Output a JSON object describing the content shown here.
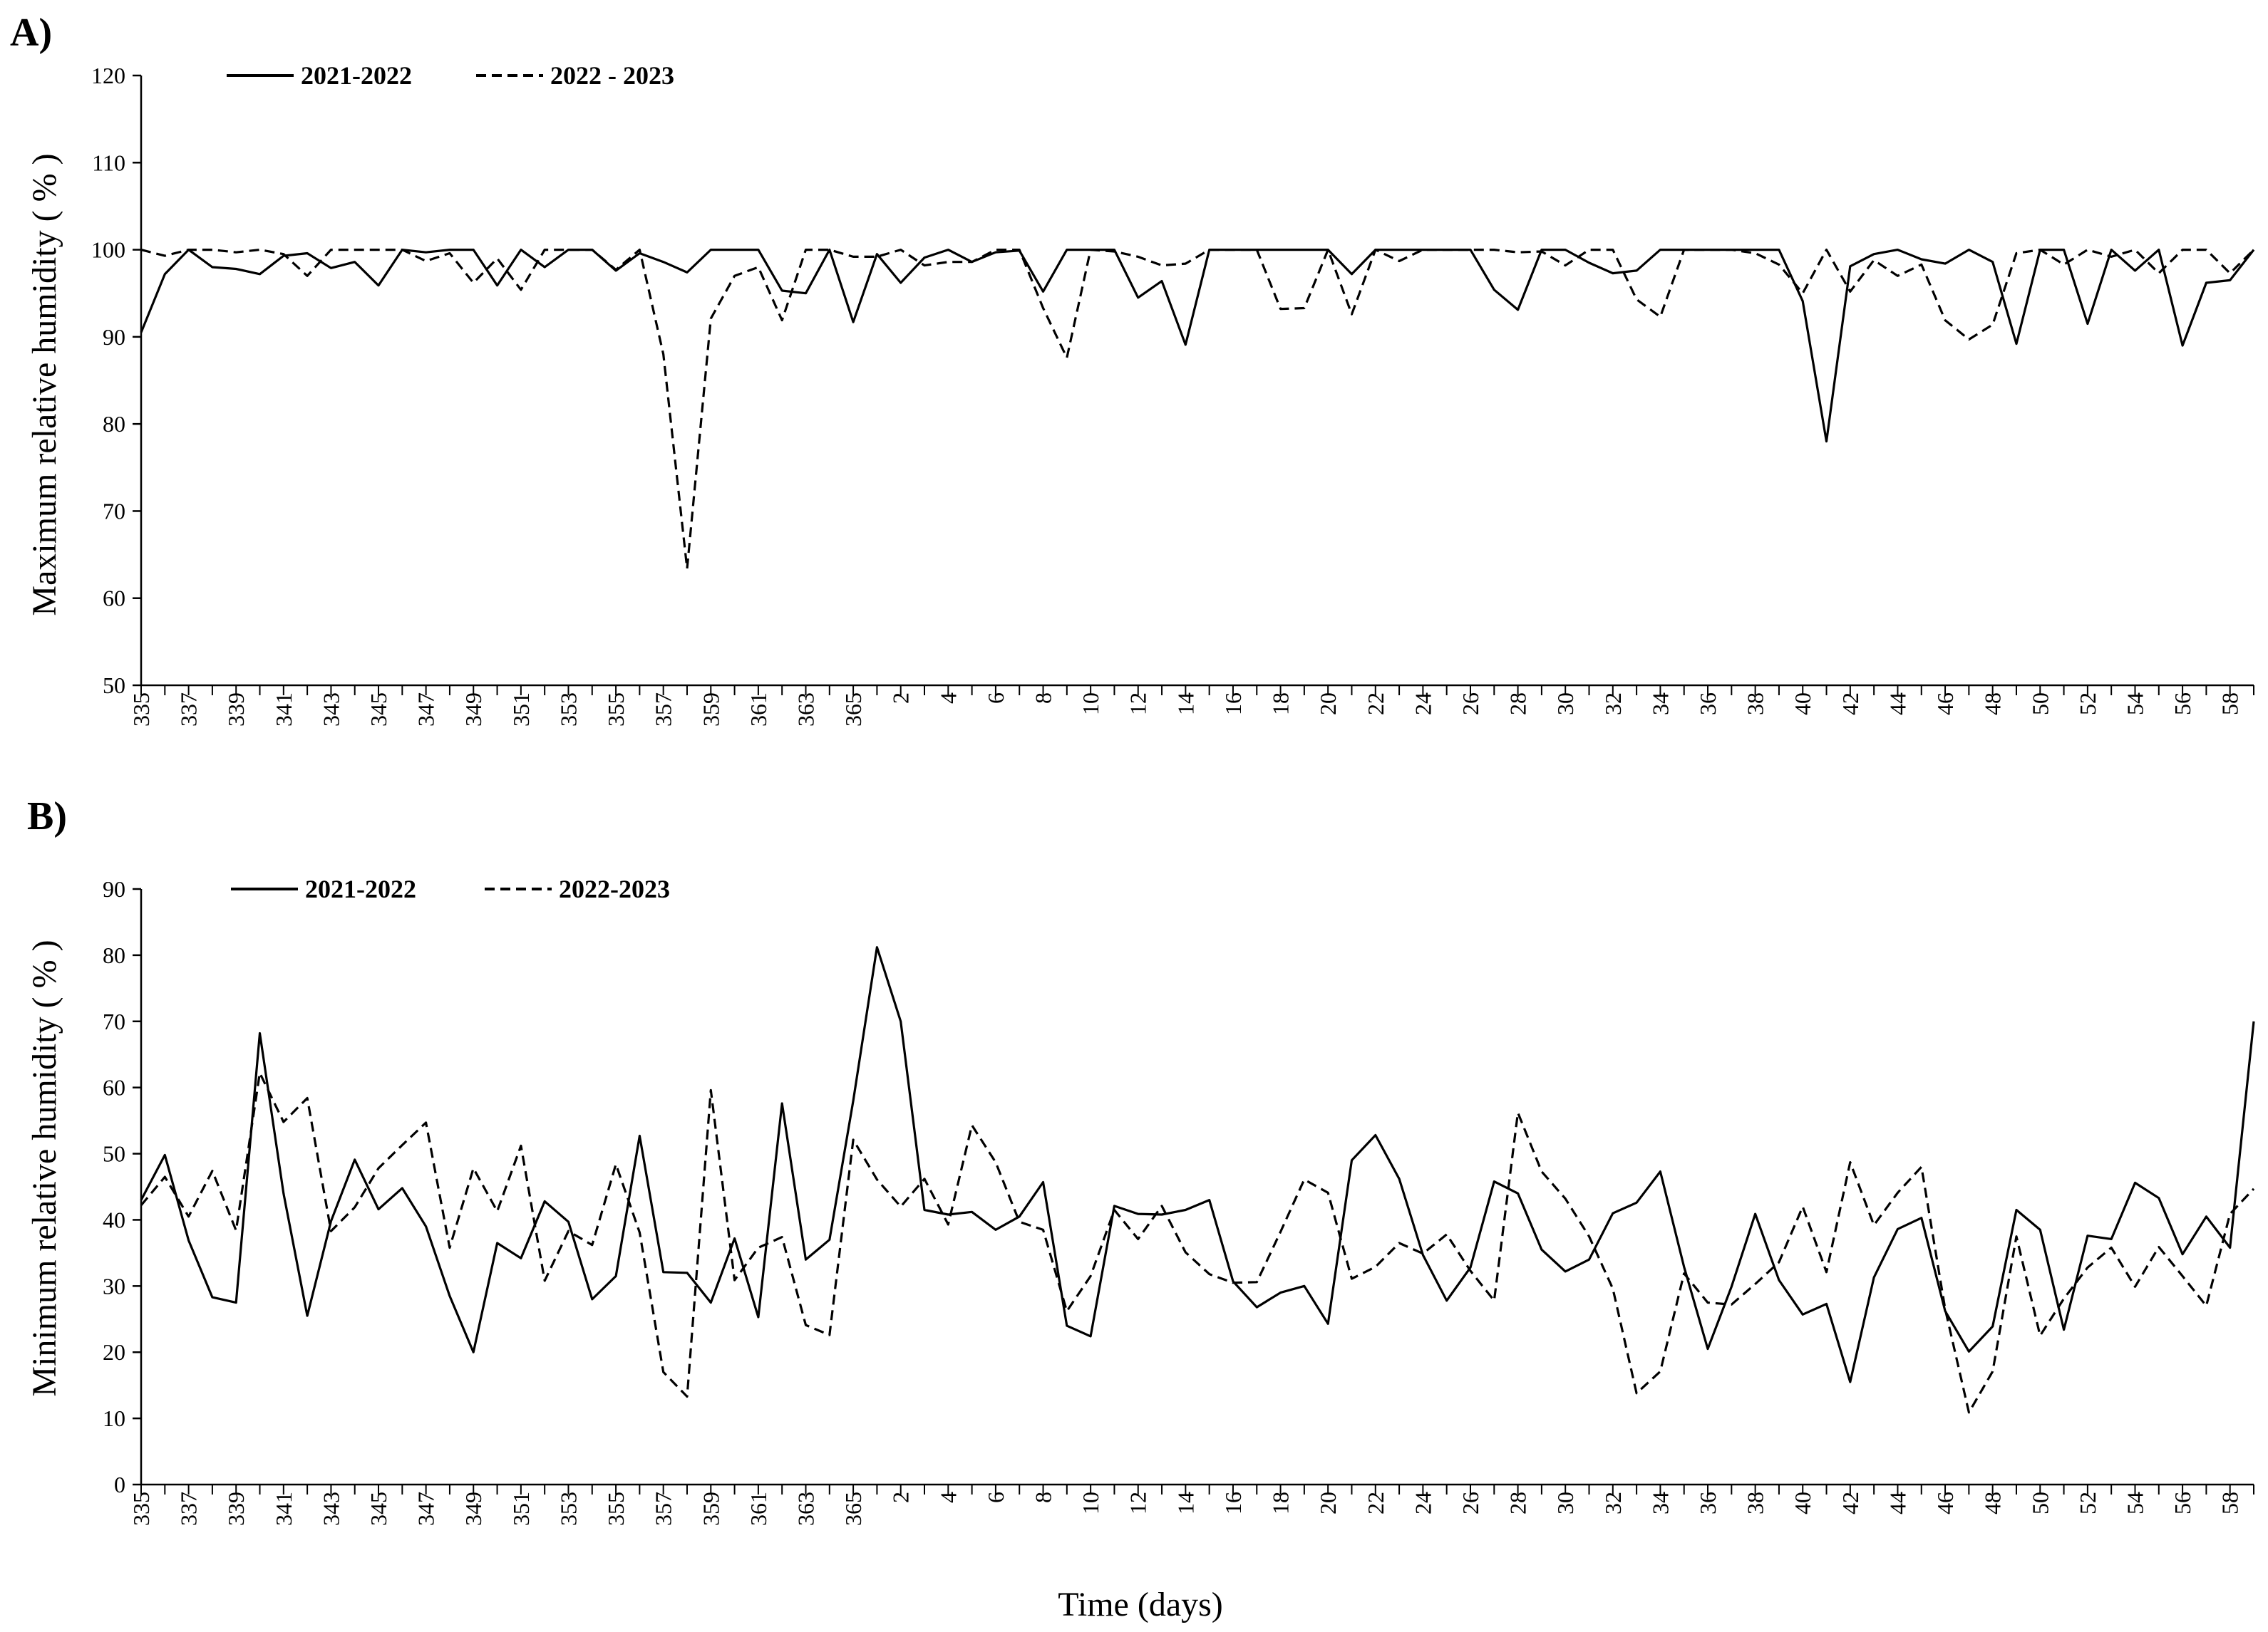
{
  "x_title": "Time (days)",
  "chart_data": [
    {
      "type": "line",
      "panel_label": "A)",
      "ylabel": "Maximum relative humidity ( % )",
      "xlabel": "Time (days)",
      "ylim": [
        50,
        120
      ],
      "yticks": [
        50,
        60,
        70,
        80,
        90,
        100,
        110,
        120
      ],
      "grid": false,
      "legend_position": "top-left",
      "x": [
        "335",
        "336",
        "337",
        "338",
        "339",
        "340",
        "341",
        "342",
        "343",
        "344",
        "345",
        "346",
        "347",
        "348",
        "349",
        "350",
        "351",
        "352",
        "353",
        "354",
        "355",
        "356",
        "357",
        "358",
        "359",
        "360",
        "361",
        "362",
        "363",
        "364",
        "365",
        "1",
        "2",
        "3",
        "4",
        "5",
        "6",
        "7",
        "8",
        "9",
        "10",
        "11",
        "12",
        "13",
        "14",
        "15",
        "16",
        "17",
        "18",
        "19",
        "20",
        "21",
        "22",
        "23",
        "24",
        "25",
        "26",
        "27",
        "28",
        "29",
        "30",
        "31",
        "32",
        "33",
        "34",
        "35",
        "36",
        "37",
        "38",
        "39",
        "40",
        "41",
        "42",
        "43",
        "44",
        "45",
        "46",
        "47",
        "48",
        "49",
        "50",
        "51",
        "52",
        "53",
        "54",
        "55",
        "56",
        "57",
        "58",
        "59"
      ],
      "tick_labels": [
        "335",
        "337",
        "339",
        "341",
        "343",
        "345",
        "347",
        "349",
        "351",
        "353",
        "355",
        "357",
        "359",
        "361",
        "363",
        "365",
        "2",
        "4",
        "6",
        "8",
        "10",
        "12",
        "14",
        "16",
        "18",
        "20",
        "22",
        "24",
        "26",
        "28",
        "30",
        "32",
        "34",
        "36",
        "38",
        "40",
        "42",
        "44",
        "46",
        "48",
        "50",
        "52",
        "54",
        "56",
        "58"
      ],
      "series": [
        {
          "name": "2021-2022",
          "style": "solid",
          "color": "#000000",
          "values": [
            90.5,
            97.2,
            100,
            98,
            97.8,
            97.2,
            99.3,
            99.6,
            97.9,
            98.6,
            95.9,
            100,
            99.7,
            100,
            100,
            95.9,
            100,
            98,
            100,
            100,
            97.6,
            99.6,
            98.6,
            97.4,
            100,
            100,
            100,
            95.3,
            95,
            100,
            91.7,
            99.5,
            96.2,
            99.1,
            100,
            98.6,
            99.7,
            99.9,
            95.2,
            100,
            100,
            100,
            94.5,
            96.4,
            89.1,
            100,
            100,
            100,
            100,
            100,
            100,
            97.2,
            100,
            100,
            100,
            100,
            100,
            95.4,
            93.1,
            100,
            100,
            98.5,
            97.3,
            97.6,
            100,
            100,
            100,
            100,
            100,
            100,
            94.1,
            78,
            98.1,
            99.5,
            100,
            98.9,
            98.4,
            100,
            98.6,
            89.2,
            100,
            100,
            91.5,
            100,
            97.6,
            100,
            89,
            96.2,
            96.5,
            100
          ]
        },
        {
          "name": "2022 - 2023",
          "style": "dashed",
          "color": "#000000",
          "values": [
            100,
            99.3,
            100,
            100,
            99.7,
            100,
            99.5,
            97,
            100,
            100,
            100,
            100,
            98.7,
            99.6,
            96.2,
            99,
            95.4,
            100,
            100,
            100,
            97.7,
            100,
            88,
            63.4,
            92.1,
            97,
            98,
            91.9,
            100,
            100,
            99.2,
            99.2,
            100,
            98.2,
            98.6,
            98.6,
            100,
            100,
            93.3,
            87.6,
            100,
            99.8,
            99.2,
            98.2,
            98.4,
            100,
            100,
            100,
            93.2,
            93.3,
            100,
            92.6,
            100,
            98.7,
            100,
            100,
            100,
            100,
            99.7,
            99.8,
            98.2,
            100,
            100,
            94.3,
            92.3,
            100,
            100,
            100,
            99.6,
            98.3,
            95,
            100,
            95.2,
            98.8,
            97,
            98.3,
            91.9,
            89.7,
            91.4,
            99.6,
            100,
            98.3,
            100,
            99.2,
            100,
            97.3,
            100,
            100,
            97.3,
            100
          ]
        }
      ]
    },
    {
      "type": "line",
      "panel_label": "B)",
      "ylabel": "Minimum relative humidity ( % )",
      "xlabel": "Time (days)",
      "ylim": [
        0,
        90
      ],
      "yticks": [
        0,
        10,
        20,
        30,
        40,
        50,
        60,
        70,
        80,
        90
      ],
      "grid": false,
      "legend_position": "top-left",
      "x": [
        "335",
        "336",
        "337",
        "338",
        "339",
        "340",
        "341",
        "342",
        "343",
        "344",
        "345",
        "346",
        "347",
        "348",
        "349",
        "350",
        "351",
        "352",
        "353",
        "354",
        "355",
        "356",
        "357",
        "358",
        "359",
        "360",
        "361",
        "362",
        "363",
        "364",
        "365",
        "1",
        "2",
        "3",
        "4",
        "5",
        "6",
        "7",
        "8",
        "9",
        "10",
        "11",
        "12",
        "13",
        "14",
        "15",
        "16",
        "17",
        "18",
        "19",
        "20",
        "21",
        "22",
        "23",
        "24",
        "25",
        "26",
        "27",
        "28",
        "29",
        "30",
        "31",
        "32",
        "33",
        "34",
        "35",
        "36",
        "37",
        "38",
        "39",
        "40",
        "41",
        "42",
        "43",
        "44",
        "45",
        "46",
        "47",
        "48",
        "49",
        "50",
        "51",
        "52",
        "53",
        "54",
        "55",
        "56",
        "57",
        "58",
        "59"
      ],
      "tick_labels": [
        "335",
        "337",
        "339",
        "341",
        "343",
        "345",
        "347",
        "349",
        "351",
        "353",
        "355",
        "357",
        "359",
        "361",
        "363",
        "365",
        "2",
        "4",
        "6",
        "8",
        "10",
        "12",
        "14",
        "16",
        "18",
        "20",
        "22",
        "24",
        "26",
        "28",
        "30",
        "32",
        "34",
        "36",
        "38",
        "40",
        "42",
        "44",
        "46",
        "48",
        "50",
        "52",
        "54",
        "56",
        "58"
      ],
      "series": [
        {
          "name": "2021-2022",
          "style": "solid",
          "color": "#000000",
          "values": [
            43,
            49.8,
            36.9,
            28.3,
            27.5,
            68.2,
            44,
            25.5,
            39.8,
            49.1,
            41.6,
            44.8,
            39,
            28.5,
            20,
            36.5,
            34.2,
            42.8,
            39.7,
            28,
            31.5,
            52.7,
            32.1,
            32,
            27.5,
            37.2,
            25.3,
            57.6,
            34,
            37,
            58,
            81.2,
            70,
            41.5,
            40.8,
            41.2,
            38.5,
            40.5,
            45.7,
            24,
            22.4,
            42.1,
            40.9,
            40.8,
            41.5,
            43,
            30.7,
            26.8,
            29,
            30,
            24.3,
            49,
            52.8,
            46.2,
            34.7,
            27.8,
            32.8,
            45.8,
            44,
            35.5,
            32.2,
            34,
            41,
            42.6,
            47.3,
            32.9,
            20.5,
            29.9,
            40.9,
            30.9,
            25.7,
            27.3,
            15.5,
            31.3,
            38.6,
            40.3,
            26.2,
            20.1,
            23.9,
            41.5,
            38.5,
            23.4,
            37.6,
            37.1,
            45.6,
            43.3,
            34.8,
            40.5,
            35.8,
            70
          ]
        },
        {
          "name": "2022-2023",
          "style": "dashed",
          "color": "#000000",
          "values": [
            42.2,
            46.5,
            40.5,
            47.4,
            38.4,
            62.2,
            54.8,
            58.4,
            38.3,
            41.9,
            47.8,
            51.3,
            54.7,
            35.8,
            47.8,
            41.3,
            51.2,
            30.8,
            38.3,
            36.2,
            48.4,
            38.1,
            17,
            13.3,
            59.6,
            30.9,
            35.8,
            37.4,
            24.1,
            22.6,
            52.1,
            46.1,
            42,
            46.2,
            39.3,
            54.3,
            48.7,
            39.7,
            38.5,
            26.2,
            31.5,
            41.5,
            37.1,
            42.1,
            35.1,
            31.8,
            30.5,
            30.6,
            38.2,
            46.1,
            44.1,
            31.1,
            32.9,
            36.5,
            34.9,
            37.8,
            32.3,
            27.8,
            56.2,
            47.3,
            43.2,
            37.5,
            29.6,
            13.8,
            17.1,
            31.9,
            27.5,
            27.2,
            30.3,
            33.6,
            42,
            32.1,
            48.7,
            39.2,
            44.1,
            48,
            26.5,
            10.9,
            17.1,
            37.5,
            22.5,
            28.1,
            32.8,
            35.8,
            29.9,
            35.9,
            31.5,
            27,
            40.9,
            44.7
          ]
        }
      ]
    }
  ]
}
